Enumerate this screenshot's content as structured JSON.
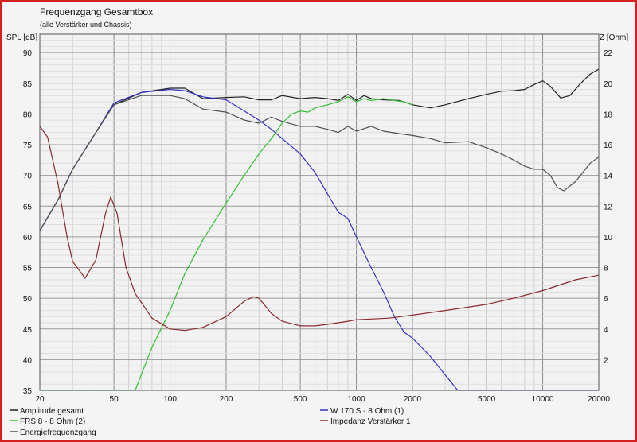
{
  "chart_data": {
    "type": "line",
    "title": "Frequenzgang Gesamtbox",
    "subtitle": "(alle Verstärker und Chassis)",
    "ylabel_left": "SPL [dB]",
    "ylabel_right": "Z [Ohm]",
    "x_scale": "log",
    "xlim": [
      20,
      20000
    ],
    "ylim_left": [
      35,
      93
    ],
    "ylim_right": [
      0,
      23.2
    ],
    "x_ticks": [
      20,
      50,
      100,
      200,
      500,
      1000,
      2000,
      5000,
      10000,
      20000
    ],
    "x_tick_labels": [
      "20",
      "50",
      "100",
      "200",
      "500",
      "1000",
      "2000",
      "5000",
      "10000",
      "20000"
    ],
    "y_left_ticks": [
      35,
      40,
      45,
      50,
      55,
      60,
      65,
      70,
      75,
      80,
      85,
      90
    ],
    "y_left_tick_labels": [
      "35",
      "40",
      "45",
      "50",
      "55",
      "60",
      "65",
      "70",
      "75",
      "80",
      "85",
      "90"
    ],
    "y_right_ticks": [
      2,
      4,
      6,
      8,
      10,
      12,
      14,
      16,
      18,
      20,
      22
    ],
    "y_right_tick_labels": [
      "2",
      "4",
      "6",
      "8",
      "10",
      "12",
      "14",
      "16",
      "18",
      "20",
      "22"
    ],
    "grid": true,
    "legend_position": "bottom",
    "series": [
      {
        "name": "Amplitude gesamt",
        "axis": "left",
        "color": "#222222",
        "points": [
          [
            20,
            61
          ],
          [
            25,
            66
          ],
          [
            30,
            71
          ],
          [
            40,
            77
          ],
          [
            50,
            81.5
          ],
          [
            70,
            83.5
          ],
          [
            100,
            84.2
          ],
          [
            120,
            84.2
          ],
          [
            150,
            82.5
          ],
          [
            200,
            82.7
          ],
          [
            250,
            82.8
          ],
          [
            300,
            82.3
          ],
          [
            350,
            82.3
          ],
          [
            400,
            83
          ],
          [
            500,
            82.5
          ],
          [
            600,
            82.7
          ],
          [
            700,
            82.5
          ],
          [
            800,
            82.2
          ],
          [
            900,
            83.2
          ],
          [
            1000,
            82.2
          ],
          [
            1100,
            83
          ],
          [
            1200,
            82.5
          ],
          [
            1400,
            82.3
          ],
          [
            1700,
            82.2
          ],
          [
            2000,
            81.5
          ],
          [
            2500,
            81
          ],
          [
            3000,
            81.5
          ],
          [
            4000,
            82.5
          ],
          [
            5000,
            83.2
          ],
          [
            6000,
            83.7
          ],
          [
            7000,
            83.8
          ],
          [
            8000,
            84
          ],
          [
            9000,
            84.8
          ],
          [
            10000,
            85.4
          ],
          [
            11000,
            84.5
          ],
          [
            12500,
            82.6
          ],
          [
            14000,
            83
          ],
          [
            16000,
            85
          ],
          [
            18000,
            86.5
          ],
          [
            20000,
            87.3
          ]
        ]
      },
      {
        "name": "W 170 S - 8 Ohm (1)",
        "axis": "left",
        "color": "#3232c8",
        "points": [
          [
            20,
            61
          ],
          [
            25,
            66
          ],
          [
            30,
            71
          ],
          [
            40,
            77
          ],
          [
            50,
            81.8
          ],
          [
            70,
            83.5
          ],
          [
            100,
            84
          ],
          [
            120,
            83.8
          ],
          [
            150,
            82.8
          ],
          [
            200,
            82.3
          ],
          [
            250,
            80.5
          ],
          [
            300,
            79
          ],
          [
            350,
            77.5
          ],
          [
            400,
            76
          ],
          [
            500,
            73.5
          ],
          [
            600,
            70.5
          ],
          [
            700,
            67
          ],
          [
            800,
            64
          ],
          [
            900,
            63
          ],
          [
            1000,
            60
          ],
          [
            1200,
            55
          ],
          [
            1400,
            51
          ],
          [
            1600,
            47
          ],
          [
            1800,
            44.5
          ],
          [
            2000,
            43.5
          ],
          [
            2500,
            40.5
          ],
          [
            3000,
            37.5
          ],
          [
            3500,
            35
          ],
          [
            5000,
            35
          ],
          [
            10000,
            35
          ],
          [
            20000,
            35
          ]
        ]
      },
      {
        "name": "FRS 8 - 8 Ohm (2)",
        "axis": "left",
        "color": "#30c030",
        "points": [
          [
            20,
            35
          ],
          [
            50,
            35
          ],
          [
            65,
            35
          ],
          [
            70,
            37.5
          ],
          [
            80,
            42
          ],
          [
            100,
            48
          ],
          [
            120,
            54
          ],
          [
            150,
            59.5
          ],
          [
            200,
            65.5
          ],
          [
            250,
            70
          ],
          [
            300,
            73.5
          ],
          [
            350,
            76
          ],
          [
            400,
            78.5
          ],
          [
            450,
            80
          ],
          [
            500,
            80.5
          ],
          [
            550,
            80.3
          ],
          [
            600,
            81
          ],
          [
            700,
            81.5
          ],
          [
            800,
            82
          ],
          [
            900,
            82.8
          ],
          [
            1000,
            82
          ],
          [
            1100,
            82.5
          ],
          [
            1200,
            82.2
          ],
          [
            1400,
            82.5
          ],
          [
            1600,
            82.2
          ],
          [
            1800,
            82
          ],
          [
            2000,
            81.5
          ]
        ]
      },
      {
        "name": "Energiefrequenzgang",
        "axis": "left",
        "color": "#505050",
        "points": [
          [
            20,
            61
          ],
          [
            25,
            66
          ],
          [
            30,
            71
          ],
          [
            40,
            77
          ],
          [
            50,
            81.5
          ],
          [
            70,
            83
          ],
          [
            100,
            83
          ],
          [
            120,
            82.5
          ],
          [
            150,
            80.8
          ],
          [
            200,
            80.3
          ],
          [
            250,
            79
          ],
          [
            300,
            78.5
          ],
          [
            350,
            79.5
          ],
          [
            400,
            78.8
          ],
          [
            500,
            78
          ],
          [
            600,
            78
          ],
          [
            700,
            77.5
          ],
          [
            800,
            77
          ],
          [
            900,
            78
          ],
          [
            1000,
            77.2
          ],
          [
            1200,
            78
          ],
          [
            1400,
            77.2
          ],
          [
            1700,
            76.8
          ],
          [
            2000,
            76.5
          ],
          [
            2500,
            76
          ],
          [
            3000,
            75.3
          ],
          [
            4000,
            75.5
          ],
          [
            5000,
            74.5
          ],
          [
            6000,
            73.5
          ],
          [
            7000,
            72.5
          ],
          [
            8000,
            71.5
          ],
          [
            9000,
            71
          ],
          [
            10000,
            71
          ],
          [
            11000,
            70
          ],
          [
            12000,
            68
          ],
          [
            13000,
            67.5
          ],
          [
            15000,
            69
          ],
          [
            18000,
            72
          ],
          [
            20000,
            73
          ]
        ]
      },
      {
        "name": "Impedanz Verstärker 1",
        "axis": "right",
        "color": "#8b2a2a",
        "points": [
          [
            20,
            17.2
          ],
          [
            22,
            16.5
          ],
          [
            25,
            13.5
          ],
          [
            28,
            10
          ],
          [
            30,
            8.4
          ],
          [
            35,
            7.3
          ],
          [
            40,
            8.5
          ],
          [
            45,
            11.5
          ],
          [
            48,
            12.6
          ],
          [
            52,
            11.5
          ],
          [
            58,
            8
          ],
          [
            65,
            6.3
          ],
          [
            80,
            4.7
          ],
          [
            100,
            4
          ],
          [
            120,
            3.9
          ],
          [
            150,
            4.1
          ],
          [
            200,
            4.8
          ],
          [
            250,
            5.8
          ],
          [
            280,
            6.1
          ],
          [
            300,
            6
          ],
          [
            350,
            5
          ],
          [
            400,
            4.5
          ],
          [
            500,
            4.2
          ],
          [
            600,
            4.2
          ],
          [
            700,
            4.3
          ],
          [
            900,
            4.5
          ],
          [
            1000,
            4.6
          ],
          [
            1500,
            4.7
          ],
          [
            2000,
            4.9
          ],
          [
            3000,
            5.2
          ],
          [
            5000,
            5.6
          ],
          [
            7000,
            6
          ],
          [
            10000,
            6.5
          ],
          [
            15000,
            7.2
          ],
          [
            20000,
            7.5
          ]
        ]
      }
    ]
  }
}
